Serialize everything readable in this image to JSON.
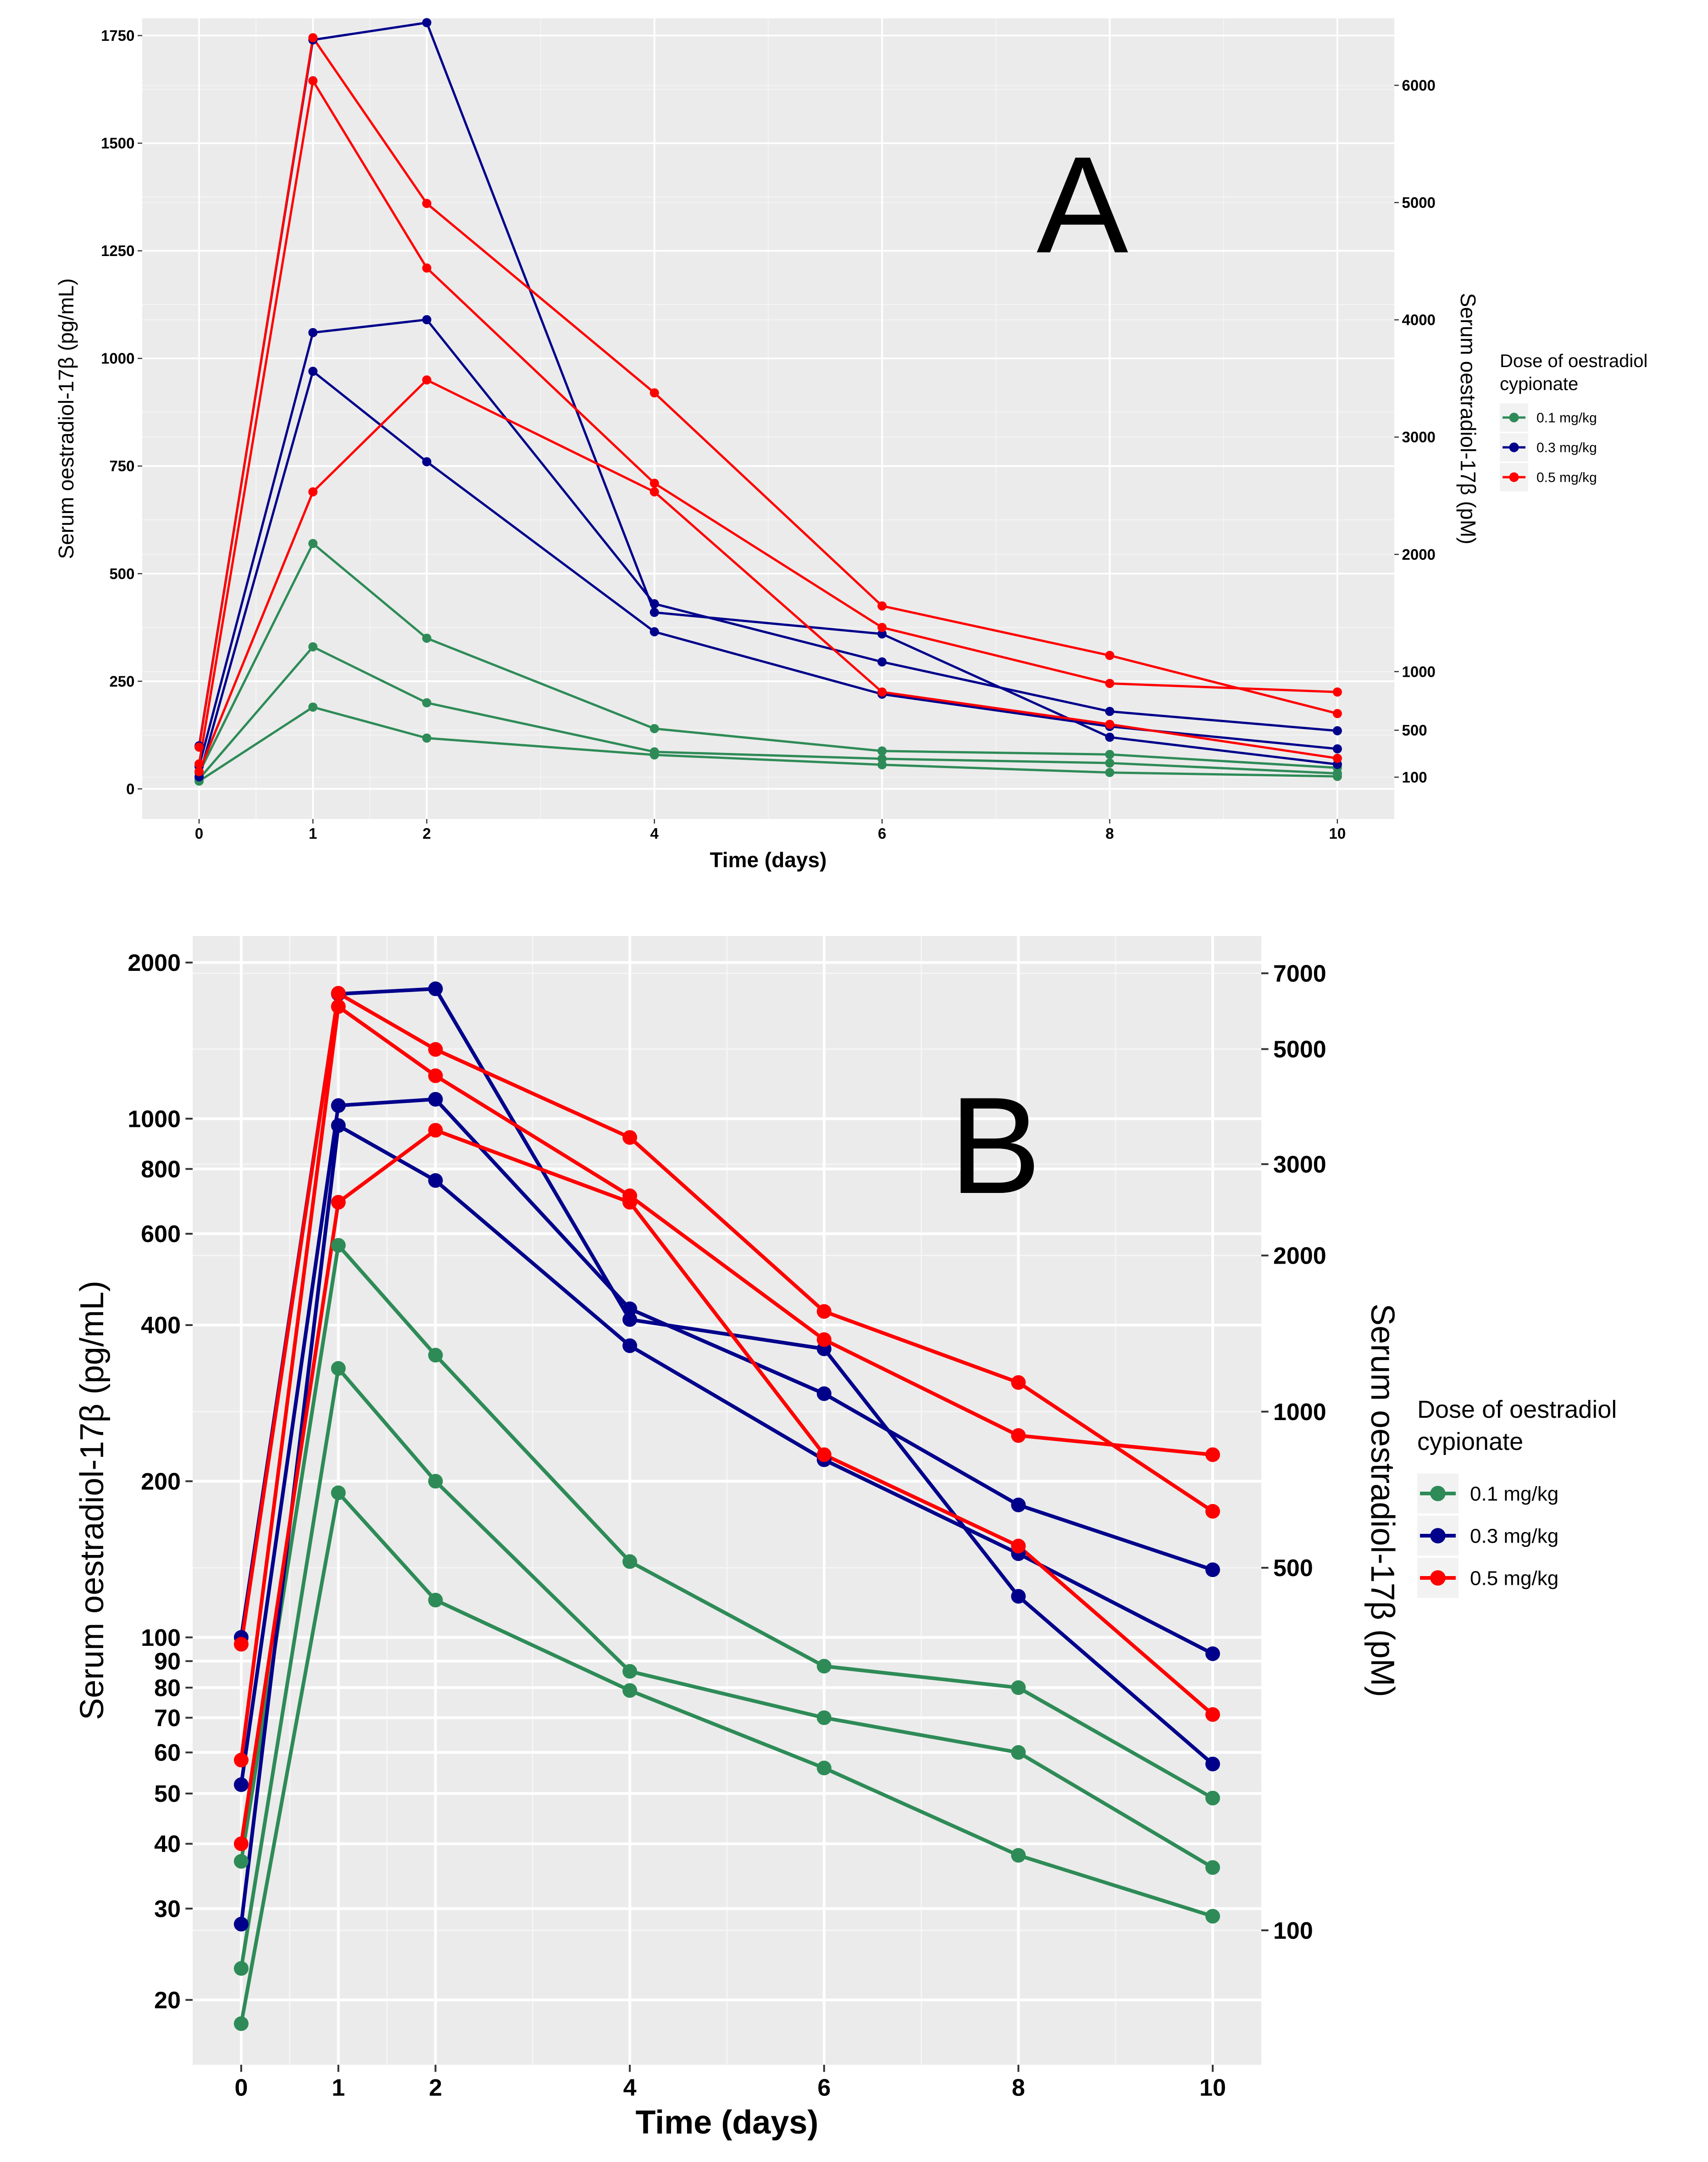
{
  "chart_data": [
    {
      "panel": "A",
      "type": "line",
      "panel_label": "A",
      "xlabel": "Time (days)",
      "ylabel": "Serum oestradiol-17β (pg/mL)",
      "ylabel_secondary": "Serum oestradiol-17β (pM)",
      "x_scale": "linear",
      "y_scale": "linear",
      "xlim": [
        -0.5,
        10.5
      ],
      "ylim": [
        -70,
        1790
      ],
      "x_ticks": [
        0,
        1,
        2,
        4,
        6,
        8,
        10
      ],
      "y_ticks": [
        0,
        250,
        500,
        750,
        1000,
        1250,
        1500,
        1750
      ],
      "y2_ticks": [
        100,
        500,
        1000,
        2000,
        3000,
        4000,
        5000,
        6000
      ],
      "y2_conversion_factor": 3.671,
      "x": [
        0,
        1,
        2,
        4,
        6,
        8,
        10
      ],
      "series": [
        {
          "name": "0.1 mg/kg",
          "color": "#2e8b57",
          "values": [
            37,
            570,
            350,
            140,
            88,
            80,
            49
          ]
        },
        {
          "name": "0.1 mg/kg",
          "color": "#2e8b57",
          "values": [
            23,
            330,
            200,
            86,
            70,
            60,
            36
          ]
        },
        {
          "name": "0.1 mg/kg",
          "color": "#2e8b57",
          "values": [
            18,
            190,
            118,
            79,
            56,
            38,
            29
          ]
        },
        {
          "name": "0.3 mg/kg",
          "color": "#00008b",
          "values": [
            100,
            1740,
            1780,
            410,
            360,
            120,
            57
          ]
        },
        {
          "name": "0.3 mg/kg",
          "color": "#00008b",
          "values": [
            52,
            1060,
            1090,
            430,
            295,
            180,
            135
          ]
        },
        {
          "name": "0.3 mg/kg",
          "color": "#00008b",
          "values": [
            28,
            970,
            760,
            365,
            220,
            145,
            93
          ]
        },
        {
          "name": "0.5 mg/kg",
          "color": "#ff0000",
          "values": [
            97,
            1745,
            1360,
            920,
            425,
            310,
            175
          ]
        },
        {
          "name": "0.5 mg/kg",
          "color": "#ff0000",
          "values": [
            58,
            1645,
            1210,
            710,
            375,
            245,
            225
          ]
        },
        {
          "name": "0.5 mg/kg",
          "color": "#ff0000",
          "values": [
            40,
            690,
            950,
            690,
            225,
            150,
            71
          ]
        }
      ],
      "legend": {
        "title_line1": "Dose of oestradiol",
        "title_line2": "cypionate",
        "entries": [
          {
            "label": "0.1 mg/kg",
            "color": "#2e8b57"
          },
          {
            "label": "0.3 mg/kg",
            "color": "#00008b"
          },
          {
            "label": "0.5 mg/kg",
            "color": "#ff0000"
          }
        ],
        "placement": "right"
      }
    },
    {
      "panel": "B",
      "type": "line",
      "panel_label": "B",
      "xlabel": "Time (days)",
      "ylabel": "Serum oestradiol-17β (pg/mL)",
      "ylabel_secondary": "Serum oestradiol-17β (pM)",
      "x_scale": "linear",
      "y_scale": "log",
      "xlim": [
        -0.5,
        10.5
      ],
      "ylim": [
        15,
        2250
      ],
      "x_ticks": [
        0,
        1,
        2,
        4,
        6,
        8,
        10
      ],
      "y_ticks": [
        20,
        30,
        40,
        50,
        60,
        70,
        80,
        90,
        100,
        200,
        400,
        600,
        800,
        1000,
        2000
      ],
      "y2_ticks": [
        100,
        500,
        1000,
        2000,
        3000,
        5000,
        7000
      ],
      "y2_conversion_factor": 3.671,
      "x": [
        0,
        1,
        2,
        4,
        6,
        8,
        10
      ],
      "series": [
        {
          "name": "0.1 mg/kg",
          "color": "#2e8b57",
          "values": [
            37,
            570,
            350,
            140,
            88,
            80,
            49
          ]
        },
        {
          "name": "0.1 mg/kg",
          "color": "#2e8b57",
          "values": [
            23,
            330,
            200,
            86,
            70,
            60,
            36
          ]
        },
        {
          "name": "0.1 mg/kg",
          "color": "#2e8b57",
          "values": [
            18,
            190,
            118,
            79,
            56,
            38,
            29
          ]
        },
        {
          "name": "0.3 mg/kg",
          "color": "#00008b",
          "values": [
            100,
            1740,
            1780,
            410,
            360,
            120,
            57
          ]
        },
        {
          "name": "0.3 mg/kg",
          "color": "#00008b",
          "values": [
            52,
            1060,
            1090,
            430,
            295,
            180,
            135
          ]
        },
        {
          "name": "0.3 mg/kg",
          "color": "#00008b",
          "values": [
            28,
            970,
            760,
            365,
            220,
            145,
            93
          ]
        },
        {
          "name": "0.5 mg/kg",
          "color": "#ff0000",
          "values": [
            97,
            1745,
            1360,
            920,
            425,
            310,
            175
          ]
        },
        {
          "name": "0.5 mg/kg",
          "color": "#ff0000",
          "values": [
            58,
            1645,
            1210,
            710,
            375,
            245,
            225
          ]
        },
        {
          "name": "0.5 mg/kg",
          "color": "#ff0000",
          "values": [
            40,
            690,
            950,
            690,
            225,
            150,
            71
          ]
        }
      ],
      "legend": {
        "title_line1": "Dose of oestradiol",
        "title_line2": "cypionate",
        "entries": [
          {
            "label": "0.1 mg/kg",
            "color": "#2e8b57"
          },
          {
            "label": "0.3 mg/kg",
            "color": "#00008b"
          },
          {
            "label": "0.5 mg/kg",
            "color": "#ff0000"
          }
        ],
        "placement": "right"
      }
    }
  ]
}
